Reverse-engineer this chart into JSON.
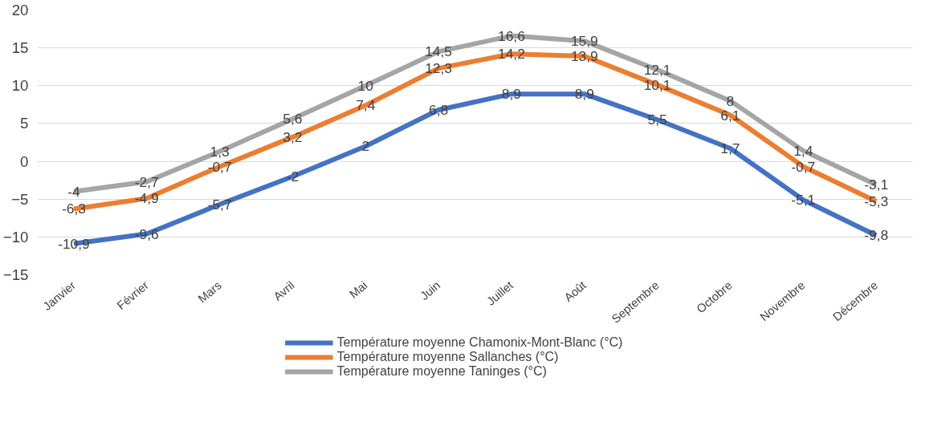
{
  "chart_data": {
    "type": "line",
    "categories": [
      "Janvier",
      "Février",
      "Mars",
      "Avril",
      "Mai",
      "Juin",
      "Juillet",
      "Août",
      "Septembre",
      "Octobre",
      "Novembre",
      "Décembre"
    ],
    "series": [
      {
        "name": "Température moyenne Chamonix-Mont-Blanc (°C)",
        "color": "#4472c4",
        "values": [
          -10.9,
          -9.6,
          -5.7,
          -2,
          2,
          6.8,
          8.9,
          8.9,
          5.5,
          1.7,
          -5.1,
          -9.8
        ],
        "value_labels": [
          "-10,9",
          "-9,6",
          "-5,7",
          "-2",
          "2",
          "6,8",
          "8,9",
          "8,9",
          "5,5",
          "1,7",
          "-5,1",
          "-9,8"
        ]
      },
      {
        "name": "Température moyenne Sallanches (°C)",
        "color": "#ed7d31",
        "values": [
          -6.3,
          -4.9,
          -0.7,
          3.2,
          7.4,
          12.3,
          14.2,
          13.9,
          10.1,
          6.1,
          -0.7,
          -5.3
        ],
        "value_labels": [
          "-6,3",
          "-4,9",
          "-0,7",
          "3,2",
          "7,4",
          "12,3",
          "14,2",
          "13,9",
          "10,1",
          "6,1",
          "-0,7",
          "-5,3"
        ]
      },
      {
        "name": "Température moyenne Taninges (°C)",
        "color": "#a5a5a5",
        "values": [
          -4,
          -2.7,
          1.3,
          5.6,
          10,
          14.5,
          16.6,
          15.9,
          12.1,
          8,
          1.4,
          -3.1
        ],
        "value_labels": [
          "-4",
          "-2,7",
          "1,3",
          "5,6",
          "10",
          "14,5",
          "16,6",
          "15,9",
          "12,1",
          "8",
          "1,4",
          "-3,1"
        ]
      }
    ],
    "ylim": [
      -15,
      20
    ],
    "yticks": [
      -15,
      -10,
      -5,
      0,
      5,
      10,
      15,
      20
    ],
    "grid": "y",
    "legend": "bottom",
    "marker": "none",
    "line_style": "solid"
  }
}
